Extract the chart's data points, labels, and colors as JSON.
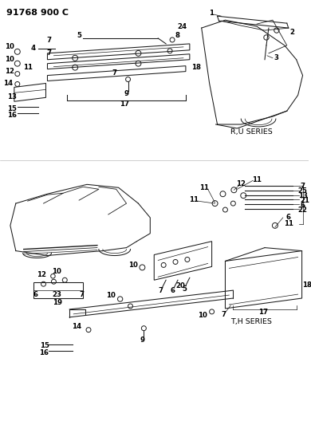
{
  "title": "91768 900 C",
  "background_color": "#ffffff",
  "line_color": "#1a1a1a",
  "fig_width": 3.9,
  "fig_height": 5.33,
  "dpi": 100,
  "top_label": "R,U SERIES",
  "bottom_label": "T,H SERIES"
}
